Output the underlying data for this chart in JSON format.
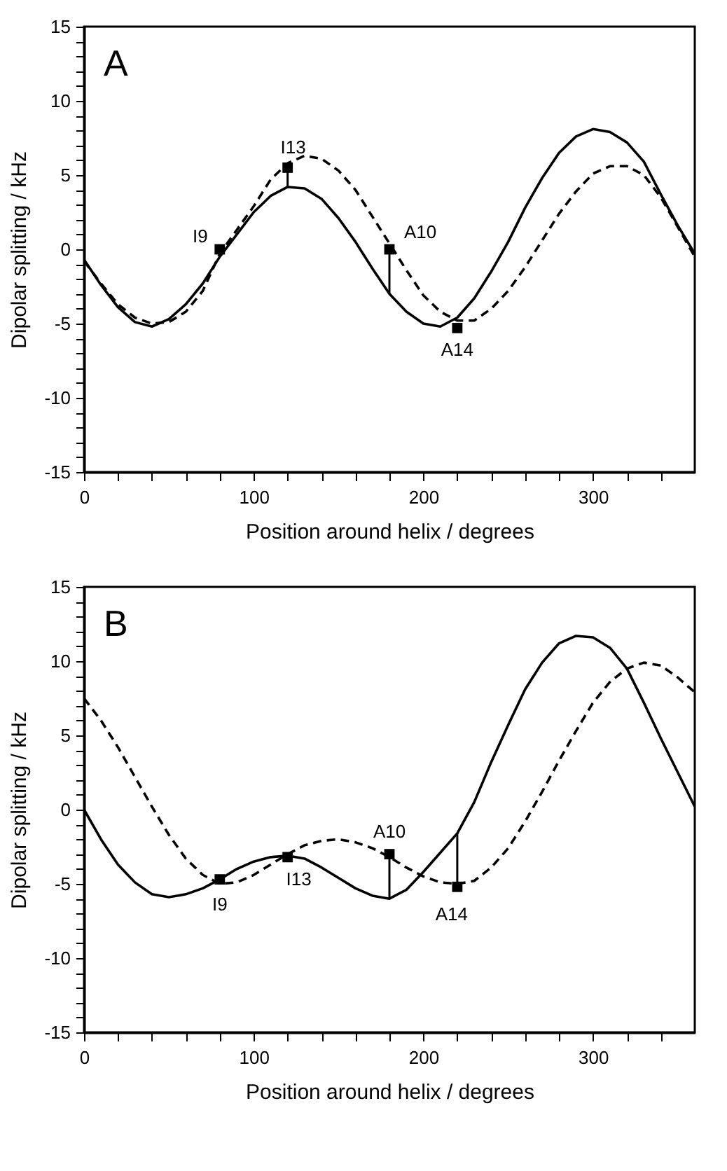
{
  "chart_data": [
    {
      "type": "line",
      "title": "A",
      "xlabel": "Position around helix / degrees",
      "ylabel": "Dipolar splitting / kHz",
      "xlim": [
        0,
        360
      ],
      "ylim": [
        -15,
        15
      ],
      "xticks": [
        0,
        {
          "value": 20,
          "label": null
        },
        {
          "value": 40,
          "label": null
        },
        {
          "value": 60,
          "label": null
        },
        {
          "value": 80,
          "label": null
        },
        100,
        {
          "value": 120,
          "label": null
        },
        {
          "value": 140,
          "label": null
        },
        {
          "value": 160,
          "label": null
        },
        {
          "value": 180,
          "label": null
        },
        200,
        {
          "value": 220,
          "label": null
        },
        {
          "value": 240,
          "label": null
        },
        {
          "value": 260,
          "label": null
        },
        {
          "value": 280,
          "label": null
        },
        300,
        {
          "value": 320,
          "label": null
        },
        {
          "value": 340,
          "label": null
        }
      ],
      "yticks": [
        -15,
        {
          "value": -14,
          "label": null
        },
        {
          "value": -13,
          "label": null
        },
        {
          "value": -12,
          "label": null
        },
        {
          "value": -11,
          "label": null
        },
        -10,
        {
          "value": -9,
          "label": null
        },
        {
          "value": -8,
          "label": null
        },
        {
          "value": -7,
          "label": null
        },
        {
          "value": -6,
          "label": null
        },
        -5,
        {
          "value": -4,
          "label": null
        },
        {
          "value": -3,
          "label": null
        },
        {
          "value": -2,
          "label": null
        },
        {
          "value": -1,
          "label": null
        },
        0,
        {
          "value": 1,
          "label": null
        },
        {
          "value": 2,
          "label": null
        },
        {
          "value": 3,
          "label": null
        },
        {
          "value": 4,
          "label": null
        },
        5,
        {
          "value": 6,
          "label": null
        },
        {
          "value": 7,
          "label": null
        },
        {
          "value": 8,
          "label": null
        },
        {
          "value": 9,
          "label": null
        },
        10,
        {
          "value": 11,
          "label": null
        },
        {
          "value": 12,
          "label": null
        },
        {
          "value": 13,
          "label": null
        },
        {
          "value": 14,
          "label": null
        },
        15
      ],
      "x": [
        0,
        10,
        20,
        30,
        40,
        50,
        60,
        70,
        80,
        90,
        100,
        110,
        120,
        130,
        140,
        150,
        160,
        170,
        180,
        190,
        200,
        210,
        220,
        230,
        240,
        250,
        260,
        270,
        280,
        290,
        300,
        310,
        320,
        330,
        340,
        350,
        360
      ],
      "series": [
        {
          "color": "#000000",
          "line_style": "solid",
          "values": [
            -0.7,
            -2.4,
            -3.9,
            -4.9,
            -5.2,
            -4.7,
            -3.7,
            -2.3,
            -0.5,
            1.0,
            2.5,
            3.6,
            4.2,
            4.1,
            3.4,
            2.1,
            0.5,
            -1.3,
            -3.0,
            -4.2,
            -5.0,
            -5.2,
            -4.6,
            -3.3,
            -1.5,
            0.5,
            2.8,
            4.8,
            6.5,
            7.6,
            8.1,
            7.9,
            7.2,
            5.9,
            3.7,
            1.6,
            -0.3
          ]
        },
        {
          "color": "#000000",
          "line_style": "dashed",
          "values": [
            -0.8,
            -2.3,
            -3.7,
            -4.6,
            -5.0,
            -4.9,
            -4.2,
            -2.8,
            -0.3,
            1.3,
            2.9,
            4.7,
            5.8,
            6.3,
            6.1,
            5.3,
            4.0,
            2.2,
            0.4,
            -1.4,
            -3.1,
            -4.2,
            -4.8,
            -4.8,
            -4.0,
            -2.8,
            -1.2,
            0.6,
            2.4,
            3.9,
            5.1,
            5.6,
            5.6,
            5.0,
            3.5,
            1.5,
            -0.5
          ]
        },
        {
          "type": "scatter",
          "marker": "square",
          "color": "#000000",
          "x": [
            80,
            120,
            180,
            220
          ],
          "values": [
            0,
            5.5,
            0,
            -5.3
          ],
          "errors": [
            null,
            [
              4.2,
              5.5
            ],
            [
              -3.0,
              0
            ],
            null
          ]
        }
      ],
      "annotations": [
        {
          "text": "I9",
          "x": 80,
          "y": 0
        },
        {
          "text": "I13",
          "x": 120,
          "y": 5.5
        },
        {
          "text": "A10",
          "x": 180,
          "y": 0
        },
        {
          "text": "A14",
          "x": 220,
          "y": -5.3
        }
      ]
    },
    {
      "type": "line",
      "title": "B",
      "xlabel": "Position around helix / degrees",
      "ylabel": "Dipolar splitting / kHz",
      "xlim": [
        0,
        360
      ],
      "ylim": [
        -15,
        15
      ],
      "xticks": [
        0,
        {
          "value": 20,
          "label": null
        },
        {
          "value": 40,
          "label": null
        },
        {
          "value": 60,
          "label": null
        },
        {
          "value": 80,
          "label": null
        },
        100,
        {
          "value": 120,
          "label": null
        },
        {
          "value": 140,
          "label": null
        },
        {
          "value": 160,
          "label": null
        },
        {
          "value": 180,
          "label": null
        },
        200,
        {
          "value": 220,
          "label": null
        },
        {
          "value": 240,
          "label": null
        },
        {
          "value": 260,
          "label": null
        },
        {
          "value": 280,
          "label": null
        },
        300,
        {
          "value": 320,
          "label": null
        },
        {
          "value": 340,
          "label": null
        }
      ],
      "yticks": [
        -15,
        {
          "value": -14,
          "label": null
        },
        {
          "value": -13,
          "label": null
        },
        {
          "value": -12,
          "label": null
        },
        {
          "value": -11,
          "label": null
        },
        -10,
        {
          "value": -9,
          "label": null
        },
        {
          "value": -8,
          "label": null
        },
        {
          "value": -7,
          "label": null
        },
        {
          "value": -6,
          "label": null
        },
        -5,
        {
          "value": -4,
          "label": null
        },
        {
          "value": -3,
          "label": null
        },
        {
          "value": -2,
          "label": null
        },
        {
          "value": -1,
          "label": null
        },
        0,
        {
          "value": 1,
          "label": null
        },
        {
          "value": 2,
          "label": null
        },
        {
          "value": 3,
          "label": null
        },
        {
          "value": 4,
          "label": null
        },
        5,
        {
          "value": 6,
          "label": null
        },
        {
          "value": 7,
          "label": null
        },
        {
          "value": 8,
          "label": null
        },
        {
          "value": 9,
          "label": null
        },
        10,
        {
          "value": 11,
          "label": null
        },
        {
          "value": 12,
          "label": null
        },
        {
          "value": 13,
          "label": null
        },
        {
          "value": 14,
          "label": null
        },
        15
      ],
      "x": [
        0,
        10,
        20,
        30,
        40,
        50,
        60,
        70,
        80,
        90,
        100,
        110,
        120,
        130,
        140,
        150,
        160,
        170,
        180,
        190,
        200,
        210,
        220,
        230,
        240,
        250,
        260,
        270,
        280,
        290,
        300,
        310,
        320,
        330,
        340,
        350,
        360
      ],
      "series": [
        {
          "color": "#000000",
          "line_style": "solid",
          "values": [
            0,
            -2.0,
            -3.7,
            -4.9,
            -5.7,
            -5.9,
            -5.7,
            -5.3,
            -4.7,
            -4.0,
            -3.5,
            -3.2,
            -3.1,
            -3.3,
            -3.9,
            -4.6,
            -5.3,
            -5.8,
            -6.0,
            -5.4,
            -4.2,
            -2.9,
            -1.6,
            0.5,
            3.2,
            5.7,
            8.1,
            9.9,
            11.2,
            11.7,
            11.6,
            10.9,
            9.5,
            7.2,
            4.8,
            2.5,
            0.2
          ]
        },
        {
          "color": "#000000",
          "line_style": "dashed",
          "values": [
            7.5,
            6.0,
            4.2,
            2.2,
            0.2,
            -1.7,
            -3.3,
            -4.4,
            -5.0,
            -4.9,
            -4.4,
            -3.7,
            -3.0,
            -2.4,
            -2.1,
            -2.0,
            -2.2,
            -2.6,
            -3.2,
            -3.9,
            -4.5,
            -4.9,
            -5.0,
            -4.8,
            -3.9,
            -2.6,
            -0.8,
            1.2,
            3.3,
            5.3,
            7.2,
            8.6,
            9.5,
            9.9,
            9.7,
            8.9,
            7.9
          ]
        },
        {
          "type": "scatter",
          "marker": "square",
          "color": "#000000",
          "x": [
            80,
            120,
            180,
            220
          ],
          "values": [
            -4.7,
            -3.2,
            -3.0,
            -5.2
          ],
          "errors": [
            null,
            null,
            [
              -6.0,
              -3.0
            ],
            [
              -5.2,
              -1.6
            ]
          ]
        }
      ],
      "annotations": [
        {
          "text": "I9",
          "x": 80,
          "y": -4.7
        },
        {
          "text": "I13",
          "x": 120,
          "y": -3.2
        },
        {
          "text": "A10",
          "x": 180,
          "y": -3.0
        },
        {
          "text": "A14",
          "x": 220,
          "y": -5.2
        }
      ]
    }
  ]
}
